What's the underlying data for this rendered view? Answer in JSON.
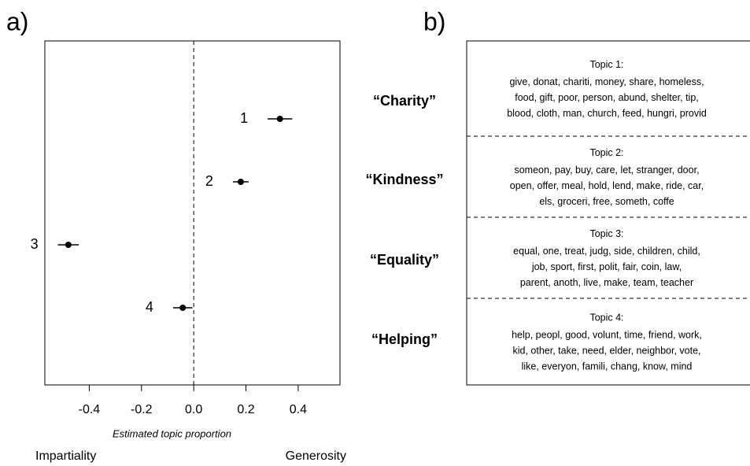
{
  "panel_labels": [
    "a)",
    "b)"
  ],
  "chart_data": {
    "type": "dot",
    "categories": [
      "1",
      "2",
      "3",
      "4"
    ],
    "values": [
      0.33,
      0.18,
      -0.48,
      -0.042
    ],
    "errors": [
      0.047,
      0.03,
      0.04,
      0.037
    ],
    "color": "#000000",
    "xlim": [
      -0.57,
      0.56
    ],
    "xticks": [
      -0.4,
      -0.2,
      {
        "value": 0,
        "label": "0.0"
      },
      0.2,
      0.4
    ],
    "xlabel": "Estimated topic proportion",
    "annotations": {
      "left": "Impartiality",
      "right": "Generosity"
    }
  },
  "topics": [
    {
      "name": "“Charity”",
      "title": "Topic 1:",
      "words": [
        "give, donat, chariti, money, share, homeless,",
        "food, gift, poor, person, abund, shelter, tip,",
        "blood, cloth, man, church, feed, hungri, provid"
      ]
    },
    {
      "name": "“Kindness”",
      "title": "Topic 2:",
      "words": [
        "someon, pay, buy, care, let, stranger, door,",
        "open, offer, meal, hold, lend, make, ride, car,",
        "els, groceri, free, someth, coffe"
      ]
    },
    {
      "name": "“Equality”",
      "title": "Topic 3:",
      "words": [
        "equal, one, treat, judg, side, children, child,",
        "job, sport, first, polit, fair, coin, law,",
        "parent, anoth, live, make, team, teacher"
      ]
    },
    {
      "name": "“Helping”",
      "title": "Topic 4:",
      "words": [
        "help, peopl, good, volunt, time, friend, work,",
        "kid, other, take, need, elder, neighbor, vote,",
        "like, everyon, famili, chang, know, mind"
      ]
    }
  ]
}
